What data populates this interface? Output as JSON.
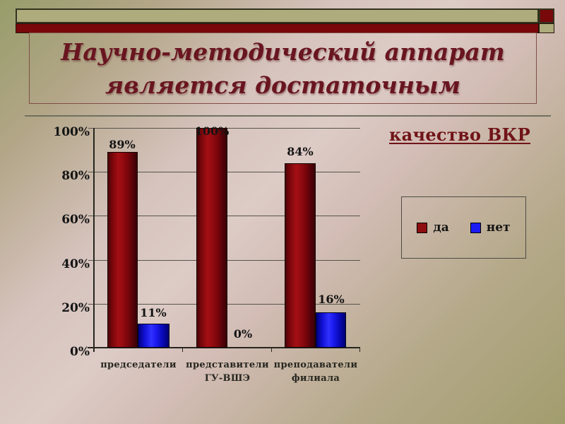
{
  "slide": {
    "title_line1": "Научно-методический аппарат",
    "title_line2": "является достаточным"
  },
  "chart_data": {
    "type": "bar",
    "title": "качество ВКР",
    "categories": [
      "председатели",
      "представители ГУ-ВШЭ",
      "преподаватели филиала"
    ],
    "category_lines": [
      [
        "председатели"
      ],
      [
        "представители",
        "ГУ-ВШЭ"
      ],
      [
        "преподаватели",
        "филиала"
      ]
    ],
    "series": [
      {
        "name": "да",
        "color": "#8e0d11",
        "values": [
          89,
          100,
          84
        ],
        "labels": [
          "89%",
          "100%",
          "84%"
        ]
      },
      {
        "name": "нет",
        "color": "#1b1bf2",
        "values": [
          11,
          0,
          16
        ],
        "labels": [
          "11%",
          "0%",
          "16%"
        ]
      }
    ],
    "y_ticks": [
      "100%",
      "80%",
      "60%",
      "40%",
      "20%",
      "0%"
    ],
    "ylim": [
      0,
      100
    ],
    "grid": true,
    "legend_position": "right",
    "accent_colors": {
      "dark_red": "#780809",
      "olive": "#aeab7c",
      "title_text": "#691520"
    }
  }
}
